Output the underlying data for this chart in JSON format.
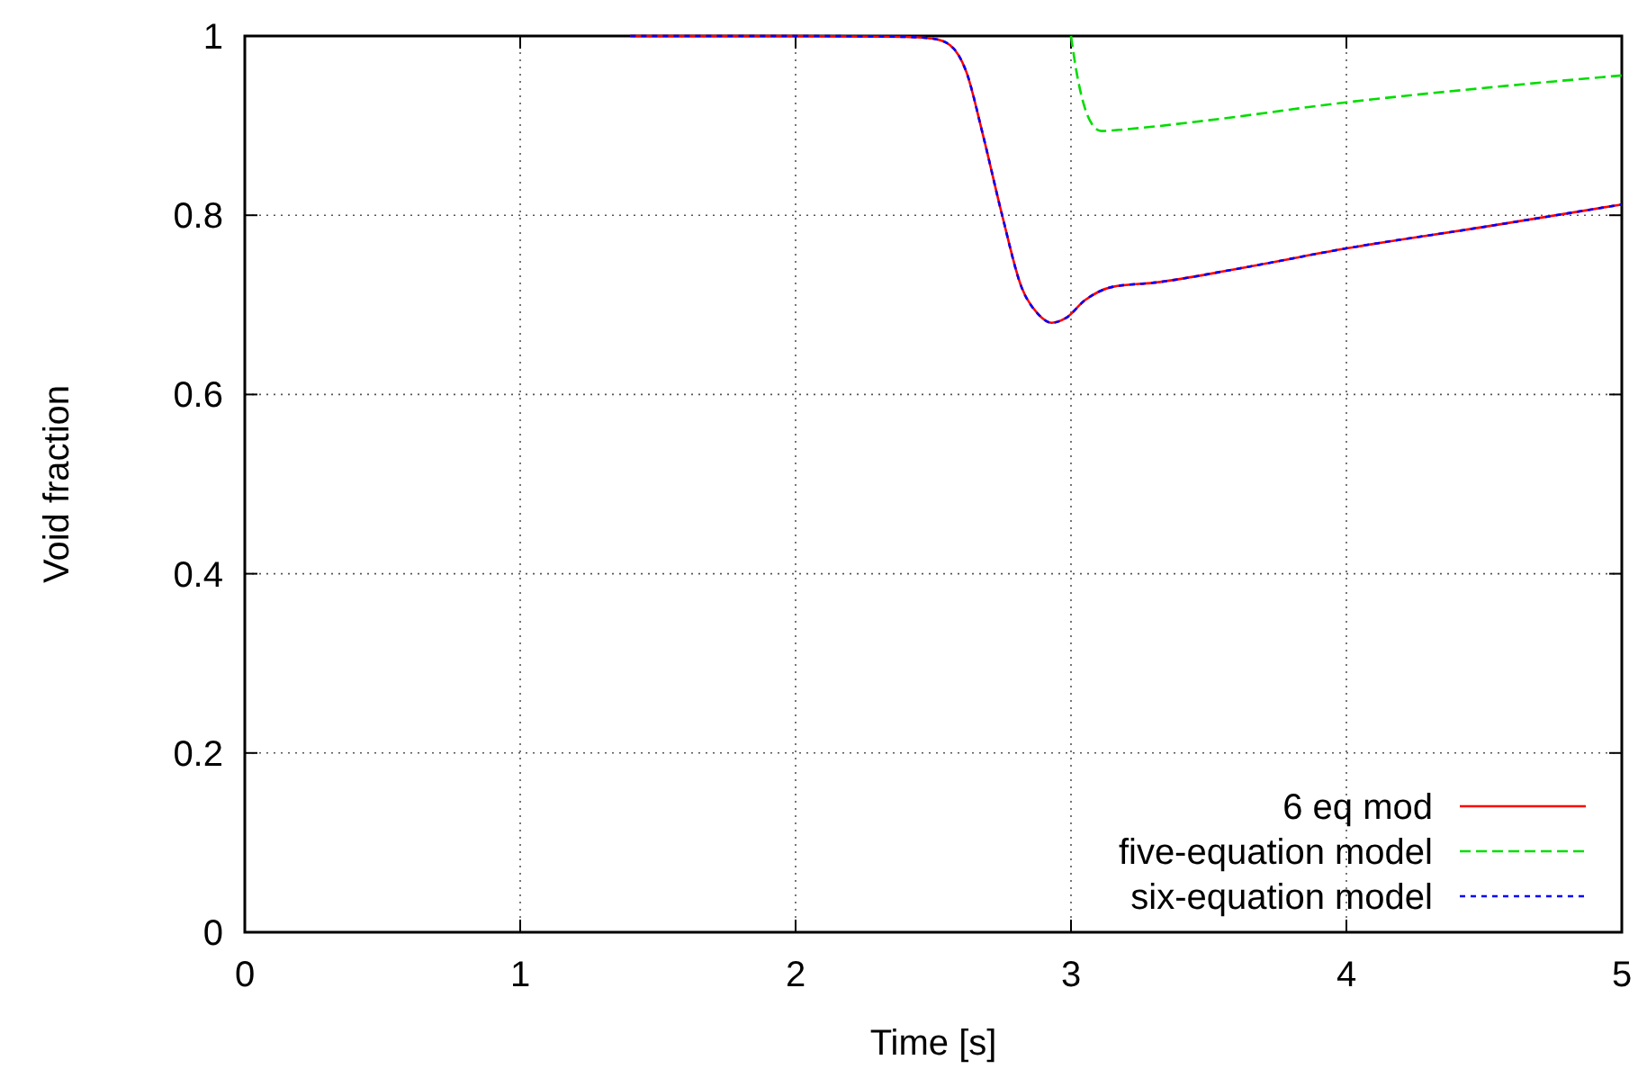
{
  "chart_data": {
    "type": "line",
    "xlabel": "Time [s]",
    "ylabel": "Void fraction",
    "xlim": [
      0,
      5
    ],
    "ylim": [
      0,
      1
    ],
    "xticks": [
      0,
      1,
      2,
      3,
      4,
      5
    ],
    "yticks": [
      0,
      0.2,
      0.4,
      0.6,
      0.8,
      1
    ],
    "grid": true,
    "legend": "bottom right",
    "series": [
      {
        "name": "6 eq mod",
        "color": "#ff0000",
        "line_style": "solid",
        "x": [
          1.4,
          2.0,
          2.4,
          2.5,
          2.56,
          2.62,
          2.68,
          2.75,
          2.82,
          2.88,
          2.93,
          2.98,
          3.05,
          3.15,
          3.31,
          3.6,
          4.0,
          4.5,
          5.0
        ],
        "values": [
          1,
          1,
          0.999,
          0.997,
          0.99,
          0.96,
          0.89,
          0.8,
          0.72,
          0.69,
          0.68,
          0.685,
          0.705,
          0.72,
          0.725,
          0.74,
          0.763,
          0.787,
          0.812
        ]
      },
      {
        "name": "five-equation model",
        "color": "#00dd00",
        "line_style": "dashed",
        "x": [
          3.0,
          3.02,
          3.05,
          3.08,
          3.11,
          3.2,
          3.5,
          4.0,
          4.5,
          5.0
        ],
        "values": [
          1,
          0.96,
          0.92,
          0.9,
          0.894,
          0.896,
          0.906,
          0.926,
          0.942,
          0.956
        ]
      },
      {
        "name": "six-equation model",
        "color": "#0000ff",
        "line_style": "dotted",
        "x": [
          1.4,
          2.0,
          2.4,
          2.5,
          2.56,
          2.62,
          2.68,
          2.75,
          2.82,
          2.88,
          2.93,
          2.98,
          3.05,
          3.15,
          3.31,
          3.6,
          4.0,
          4.5,
          5.0
        ],
        "values": [
          1,
          1,
          0.999,
          0.997,
          0.99,
          0.96,
          0.89,
          0.8,
          0.72,
          0.69,
          0.68,
          0.685,
          0.705,
          0.72,
          0.725,
          0.74,
          0.763,
          0.787,
          0.812
        ]
      }
    ]
  }
}
